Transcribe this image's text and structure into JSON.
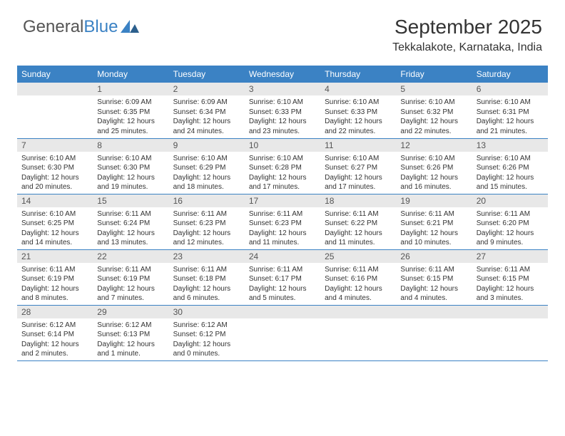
{
  "logo": {
    "part1": "General",
    "part2": "Blue"
  },
  "header": {
    "title": "September 2025",
    "location": "Tekkalakote, Karnataka, India"
  },
  "days": [
    "Sunday",
    "Monday",
    "Tuesday",
    "Wednesday",
    "Thursday",
    "Friday",
    "Saturday"
  ],
  "colors": {
    "headerBg": "#3b82c4",
    "headerText": "#ffffff",
    "dayBg": "#e8e8e8",
    "border": "#3b82c4",
    "text": "#333333"
  },
  "typography": {
    "title_fontsize": 28,
    "location_fontsize": 16,
    "th_fontsize": 12,
    "daynum_fontsize": 12,
    "info_fontsize": 10
  },
  "weeks": [
    [
      null,
      {
        "n": "1",
        "sr": "Sunrise: 6:09 AM",
        "ss": "Sunset: 6:35 PM",
        "dl": "Daylight: 12 hours and 25 minutes."
      },
      {
        "n": "2",
        "sr": "Sunrise: 6:09 AM",
        "ss": "Sunset: 6:34 PM",
        "dl": "Daylight: 12 hours and 24 minutes."
      },
      {
        "n": "3",
        "sr": "Sunrise: 6:10 AM",
        "ss": "Sunset: 6:33 PM",
        "dl": "Daylight: 12 hours and 23 minutes."
      },
      {
        "n": "4",
        "sr": "Sunrise: 6:10 AM",
        "ss": "Sunset: 6:33 PM",
        "dl": "Daylight: 12 hours and 22 minutes."
      },
      {
        "n": "5",
        "sr": "Sunrise: 6:10 AM",
        "ss": "Sunset: 6:32 PM",
        "dl": "Daylight: 12 hours and 22 minutes."
      },
      {
        "n": "6",
        "sr": "Sunrise: 6:10 AM",
        "ss": "Sunset: 6:31 PM",
        "dl": "Daylight: 12 hours and 21 minutes."
      }
    ],
    [
      {
        "n": "7",
        "sr": "Sunrise: 6:10 AM",
        "ss": "Sunset: 6:30 PM",
        "dl": "Daylight: 12 hours and 20 minutes."
      },
      {
        "n": "8",
        "sr": "Sunrise: 6:10 AM",
        "ss": "Sunset: 6:30 PM",
        "dl": "Daylight: 12 hours and 19 minutes."
      },
      {
        "n": "9",
        "sr": "Sunrise: 6:10 AM",
        "ss": "Sunset: 6:29 PM",
        "dl": "Daylight: 12 hours and 18 minutes."
      },
      {
        "n": "10",
        "sr": "Sunrise: 6:10 AM",
        "ss": "Sunset: 6:28 PM",
        "dl": "Daylight: 12 hours and 17 minutes."
      },
      {
        "n": "11",
        "sr": "Sunrise: 6:10 AM",
        "ss": "Sunset: 6:27 PM",
        "dl": "Daylight: 12 hours and 17 minutes."
      },
      {
        "n": "12",
        "sr": "Sunrise: 6:10 AM",
        "ss": "Sunset: 6:26 PM",
        "dl": "Daylight: 12 hours and 16 minutes."
      },
      {
        "n": "13",
        "sr": "Sunrise: 6:10 AM",
        "ss": "Sunset: 6:26 PM",
        "dl": "Daylight: 12 hours and 15 minutes."
      }
    ],
    [
      {
        "n": "14",
        "sr": "Sunrise: 6:10 AM",
        "ss": "Sunset: 6:25 PM",
        "dl": "Daylight: 12 hours and 14 minutes."
      },
      {
        "n": "15",
        "sr": "Sunrise: 6:11 AM",
        "ss": "Sunset: 6:24 PM",
        "dl": "Daylight: 12 hours and 13 minutes."
      },
      {
        "n": "16",
        "sr": "Sunrise: 6:11 AM",
        "ss": "Sunset: 6:23 PM",
        "dl": "Daylight: 12 hours and 12 minutes."
      },
      {
        "n": "17",
        "sr": "Sunrise: 6:11 AM",
        "ss": "Sunset: 6:23 PM",
        "dl": "Daylight: 12 hours and 11 minutes."
      },
      {
        "n": "18",
        "sr": "Sunrise: 6:11 AM",
        "ss": "Sunset: 6:22 PM",
        "dl": "Daylight: 12 hours and 11 minutes."
      },
      {
        "n": "19",
        "sr": "Sunrise: 6:11 AM",
        "ss": "Sunset: 6:21 PM",
        "dl": "Daylight: 12 hours and 10 minutes."
      },
      {
        "n": "20",
        "sr": "Sunrise: 6:11 AM",
        "ss": "Sunset: 6:20 PM",
        "dl": "Daylight: 12 hours and 9 minutes."
      }
    ],
    [
      {
        "n": "21",
        "sr": "Sunrise: 6:11 AM",
        "ss": "Sunset: 6:19 PM",
        "dl": "Daylight: 12 hours and 8 minutes."
      },
      {
        "n": "22",
        "sr": "Sunrise: 6:11 AM",
        "ss": "Sunset: 6:19 PM",
        "dl": "Daylight: 12 hours and 7 minutes."
      },
      {
        "n": "23",
        "sr": "Sunrise: 6:11 AM",
        "ss": "Sunset: 6:18 PM",
        "dl": "Daylight: 12 hours and 6 minutes."
      },
      {
        "n": "24",
        "sr": "Sunrise: 6:11 AM",
        "ss": "Sunset: 6:17 PM",
        "dl": "Daylight: 12 hours and 5 minutes."
      },
      {
        "n": "25",
        "sr": "Sunrise: 6:11 AM",
        "ss": "Sunset: 6:16 PM",
        "dl": "Daylight: 12 hours and 4 minutes."
      },
      {
        "n": "26",
        "sr": "Sunrise: 6:11 AM",
        "ss": "Sunset: 6:15 PM",
        "dl": "Daylight: 12 hours and 4 minutes."
      },
      {
        "n": "27",
        "sr": "Sunrise: 6:11 AM",
        "ss": "Sunset: 6:15 PM",
        "dl": "Daylight: 12 hours and 3 minutes."
      }
    ],
    [
      {
        "n": "28",
        "sr": "Sunrise: 6:12 AM",
        "ss": "Sunset: 6:14 PM",
        "dl": "Daylight: 12 hours and 2 minutes."
      },
      {
        "n": "29",
        "sr": "Sunrise: 6:12 AM",
        "ss": "Sunset: 6:13 PM",
        "dl": "Daylight: 12 hours and 1 minute."
      },
      {
        "n": "30",
        "sr": "Sunrise: 6:12 AM",
        "ss": "Sunset: 6:12 PM",
        "dl": "Daylight: 12 hours and 0 minutes."
      },
      null,
      null,
      null,
      null
    ]
  ]
}
